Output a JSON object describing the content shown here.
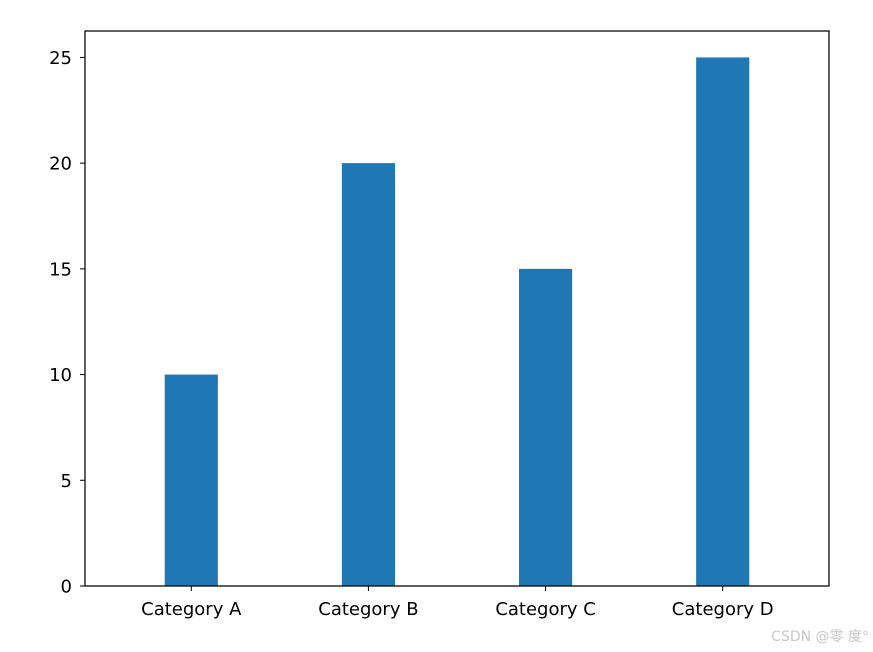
{
  "chart_data": {
    "type": "bar",
    "categories": [
      "Category A",
      "Category B",
      "Category C",
      "Category D"
    ],
    "values": [
      10,
      20,
      15,
      25
    ],
    "title": "",
    "xlabel": "",
    "ylabel": "",
    "ylim": [
      0,
      26.25
    ],
    "yticks": [
      "0",
      "5",
      "10",
      "15",
      "20",
      "25"
    ],
    "grid": false,
    "bar_color": "#1f77b4"
  },
  "watermark": "CSDN @零 度°"
}
